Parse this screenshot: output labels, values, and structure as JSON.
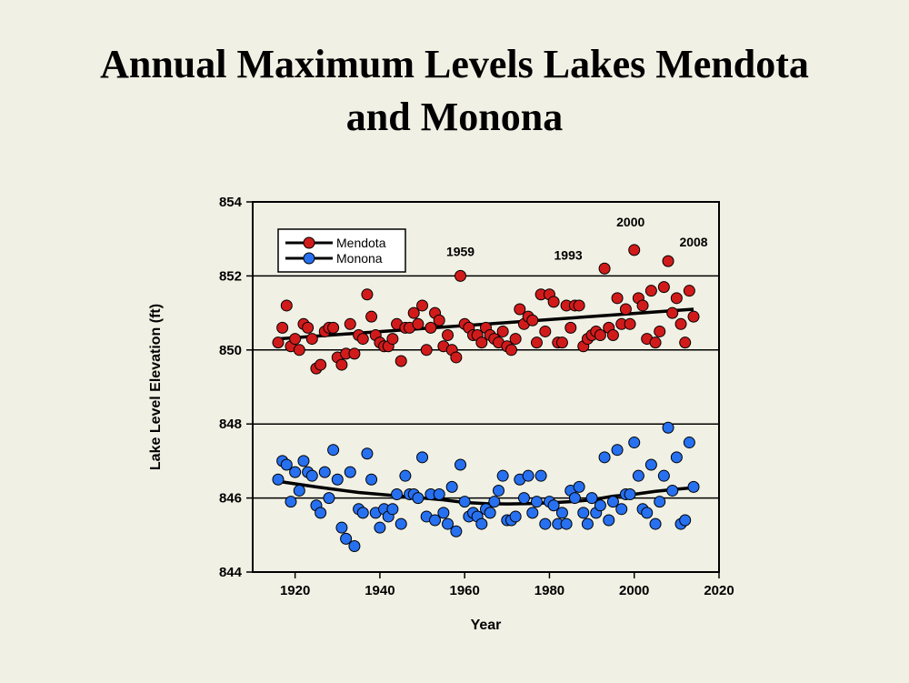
{
  "slide": {
    "title_line1": "Annual Maximum Levels Lakes Mendota",
    "title_line2": "and Monona"
  },
  "chart_data": {
    "type": "scatter",
    "xlabel": "Year",
    "ylabel": "Lake Level Elevation  (ft)",
    "xlim": [
      1910,
      2020
    ],
    "ylim": [
      844,
      854
    ],
    "xticks": [
      1920,
      1940,
      1960,
      1980,
      2000,
      2020
    ],
    "yticks": [
      844,
      846,
      848,
      850,
      852,
      854
    ],
    "grid": "horizontal",
    "legend_position": "top-left",
    "series": [
      {
        "name": "Mendota",
        "color": "#d11b1b",
        "x": [
          1916,
          1917,
          1918,
          1919,
          1920,
          1921,
          1922,
          1923,
          1924,
          1925,
          1926,
          1927,
          1928,
          1929,
          1930,
          1931,
          1932,
          1933,
          1934,
          1935,
          1936,
          1937,
          1938,
          1939,
          1940,
          1941,
          1942,
          1943,
          1944,
          1945,
          1946,
          1947,
          1948,
          1949,
          1950,
          1951,
          1952,
          1953,
          1954,
          1955,
          1956,
          1957,
          1958,
          1959,
          1960,
          1961,
          1962,
          1963,
          1964,
          1965,
          1966,
          1967,
          1968,
          1969,
          1970,
          1971,
          1972,
          1973,
          1974,
          1975,
          1976,
          1977,
          1978,
          1979,
          1980,
          1981,
          1982,
          1983,
          1984,
          1985,
          1986,
          1987,
          1988,
          1989,
          1990,
          1991,
          1992,
          1993,
          1994,
          1995,
          1996,
          1997,
          1998,
          1999,
          2000,
          2001,
          2002,
          2003,
          2004,
          2005,
          2006,
          2007,
          2008,
          2009,
          2010,
          2011,
          2012,
          2013,
          2014
        ],
        "y": [
          850.2,
          850.6,
          851.2,
          850.1,
          850.3,
          850.0,
          850.7,
          850.6,
          850.3,
          849.5,
          849.6,
          850.5,
          850.6,
          850.6,
          849.8,
          849.6,
          849.9,
          850.7,
          849.9,
          850.4,
          850.3,
          851.5,
          850.9,
          850.4,
          850.2,
          850.1,
          850.1,
          850.3,
          850.7,
          849.7,
          850.6,
          850.6,
          851.0,
          850.7,
          851.2,
          850.0,
          850.6,
          851.0,
          850.8,
          850.1,
          850.4,
          850.0,
          849.8,
          852.0,
          850.7,
          850.6,
          850.4,
          850.4,
          850.2,
          850.6,
          850.4,
          850.3,
          850.2,
          850.5,
          850.1,
          850.0,
          850.3,
          851.1,
          850.7,
          850.9,
          850.8,
          850.2,
          851.5,
          850.5,
          851.5,
          851.3,
          850.2,
          850.2,
          851.2,
          850.6,
          851.2,
          851.2,
          850.1,
          850.3,
          850.4,
          850.5,
          850.4,
          852.2,
          850.6,
          850.4,
          851.4,
          850.7,
          851.1,
          850.7,
          852.7,
          851.4,
          851.2,
          850.3,
          851.6,
          850.2,
          850.5,
          851.7,
          852.4,
          851.0,
          851.4,
          850.7,
          850.2,
          851.6,
          850.9
        ],
        "trend_x": [
          1916,
          2014
        ],
        "trend_y": [
          850.3,
          851.1
        ]
      },
      {
        "name": "Monona",
        "color": "#2770f0",
        "x": [
          1916,
          1917,
          1918,
          1919,
          1920,
          1921,
          1922,
          1923,
          1924,
          1925,
          1926,
          1927,
          1928,
          1929,
          1930,
          1931,
          1932,
          1933,
          1934,
          1935,
          1936,
          1937,
          1938,
          1939,
          1940,
          1941,
          1942,
          1943,
          1944,
          1945,
          1946,
          1947,
          1948,
          1949,
          1950,
          1951,
          1952,
          1953,
          1954,
          1955,
          1956,
          1957,
          1958,
          1959,
          1960,
          1961,
          1962,
          1963,
          1964,
          1965,
          1966,
          1967,
          1968,
          1969,
          1970,
          1971,
          1972,
          1973,
          1974,
          1975,
          1976,
          1977,
          1978,
          1979,
          1980,
          1981,
          1982,
          1983,
          1984,
          1985,
          1986,
          1987,
          1988,
          1989,
          1990,
          1991,
          1992,
          1993,
          1994,
          1995,
          1996,
          1997,
          1998,
          1999,
          2000,
          2001,
          2002,
          2003,
          2004,
          2005,
          2006,
          2007,
          2008,
          2009,
          2010,
          2011,
          2012,
          2013,
          2014
        ],
        "y": [
          846.5,
          847.0,
          846.9,
          845.9,
          846.7,
          846.2,
          847.0,
          846.7,
          846.6,
          845.8,
          845.6,
          846.7,
          846.0,
          847.3,
          846.5,
          845.2,
          844.9,
          846.7,
          844.7,
          845.7,
          845.6,
          847.2,
          846.5,
          845.6,
          845.2,
          845.7,
          845.5,
          845.7,
          846.1,
          845.3,
          846.6,
          846.1,
          846.1,
          846.0,
          847.1,
          845.5,
          846.1,
          845.4,
          846.1,
          845.6,
          845.3,
          846.3,
          845.1,
          846.9,
          845.9,
          845.5,
          845.6,
          845.5,
          845.3,
          845.7,
          845.6,
          845.9,
          846.2,
          846.6,
          845.4,
          845.4,
          845.5,
          846.5,
          846.0,
          846.6,
          845.6,
          845.9,
          846.6,
          845.3,
          845.9,
          845.8,
          845.3,
          845.6,
          845.3,
          846.2,
          846.0,
          846.3,
          845.6,
          845.3,
          846.0,
          845.6,
          845.8,
          847.1,
          845.4,
          845.9,
          847.3,
          845.7,
          846.1,
          846.1,
          847.5,
          846.6,
          845.7,
          845.6,
          846.9,
          845.3,
          845.9,
          846.6,
          847.9,
          846.2,
          847.1,
          845.3,
          845.4,
          847.5,
          846.3
        ],
        "trend_x": [
          1916,
          1925,
          1935,
          1945,
          1955,
          1960,
          1965,
          1970,
          1975,
          1980,
          1985,
          1990,
          1995,
          2000,
          2005,
          2010,
          2014
        ],
        "trend_y": [
          846.45,
          846.3,
          846.15,
          846.05,
          845.95,
          845.88,
          845.85,
          845.84,
          845.85,
          845.87,
          845.9,
          845.95,
          846.05,
          846.1,
          846.18,
          846.24,
          846.28
        ]
      }
    ],
    "annotations": [
      {
        "text": "1959",
        "x": 1959,
        "y": 852.0
      },
      {
        "text": "1993",
        "x": 1993,
        "y": 852.2
      },
      {
        "text": "2000",
        "x": 2000,
        "y": 852.7
      },
      {
        "text": "2008",
        "x": 2008,
        "y": 852.4
      }
    ]
  }
}
